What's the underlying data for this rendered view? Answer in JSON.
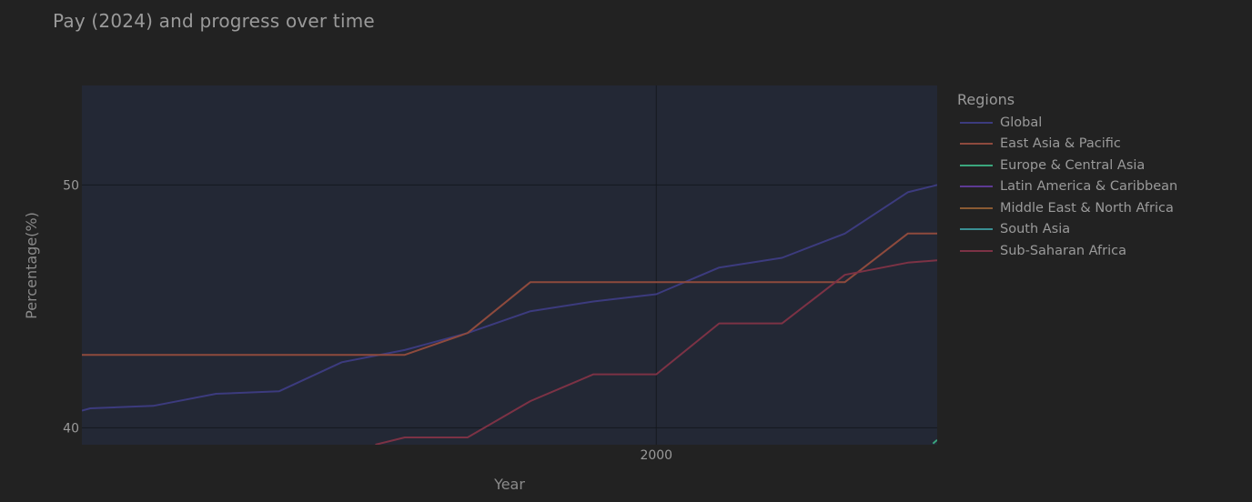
{
  "title": "Pay (2024) and progress over time",
  "chart_data": {
    "type": "line",
    "title": "Pay (2024) and progress over time",
    "xlabel": "Year",
    "ylabel": "Percentage(%)",
    "xlim": [
      1972.6,
      2013.4
    ],
    "ylim": [
      39.3,
      54.1
    ],
    "xticks": [
      2000
    ],
    "yticks": [
      40,
      50
    ],
    "grid": true,
    "legend_title": "Regions",
    "legend_position": "right",
    "series": [
      {
        "name": "Global",
        "color": "#3c3b7e",
        "x": [
          1972.6,
          1973,
          1976,
          1979,
          1982,
          1985,
          1988,
          1991,
          1994,
          1997,
          2000,
          2003,
          2006,
          2009,
          2012,
          2013.4
        ],
        "y": [
          40.7,
          40.8,
          40.9,
          41.4,
          41.5,
          42.7,
          43.2,
          43.9,
          44.8,
          45.2,
          45.5,
          46.6,
          47.0,
          48.0,
          49.7,
          50.0
        ]
      },
      {
        "name": "East Asia & Pacific",
        "color": "#8e4a3d",
        "x": [
          1972.6,
          1988,
          1991,
          1994,
          2009,
          2012,
          2013.4
        ],
        "y": [
          43.0,
          43.0,
          43.9,
          46.0,
          46.0,
          48.0,
          48.0
        ]
      },
      {
        "name": "Europe & Central Asia",
        "color": "#3ba67d",
        "x": [
          2013.2,
          2013.4
        ],
        "y": [
          39.35,
          39.5
        ]
      },
      {
        "name": "Latin America & Caribbean",
        "color": "#5d3a93",
        "x": [],
        "y": []
      },
      {
        "name": "Middle East & North Africa",
        "color": "#8a5a33",
        "x": [],
        "y": []
      },
      {
        "name": "South Asia",
        "color": "#3a8f93",
        "x": [],
        "y": []
      },
      {
        "name": "Sub-Saharan Africa",
        "color": "#7c3245",
        "x": [
          1986.6,
          1988,
          1991,
          1994,
          1997,
          2000,
          2003,
          2006,
          2009,
          2012,
          2013.4
        ],
        "y": [
          39.3,
          39.6,
          39.6,
          41.1,
          42.2,
          42.2,
          44.3,
          44.3,
          46.3,
          46.8,
          46.9
        ]
      }
    ]
  }
}
